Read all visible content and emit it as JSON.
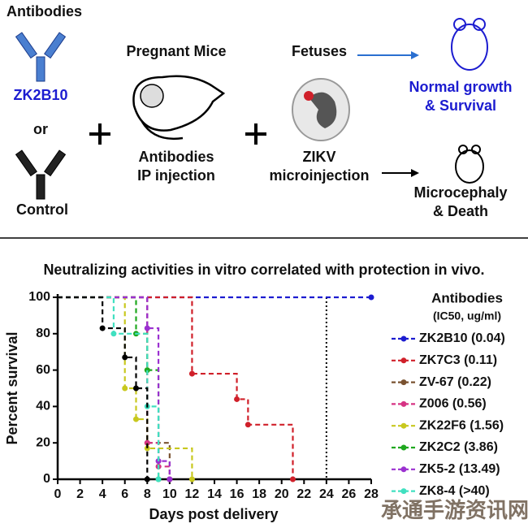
{
  "diagram": {
    "antibodies_heading": "Antibodies",
    "test_antibody": "ZK2B10",
    "or": "or",
    "control": "Control",
    "mice_heading": "Pregnant Mice",
    "mice_caption": [
      "Antibodies",
      "IP injection"
    ],
    "fetuses_heading": "Fetuses",
    "fetuses_caption": [
      "ZIKV",
      "microinjection"
    ],
    "outcome_good": [
      "Normal growth",
      "& Survival"
    ],
    "outcome_bad": [
      "Microcephaly",
      "& Death"
    ]
  },
  "chart_data": {
    "type": "step",
    "title": "Neutralizing activities in vitro correlated with protection in vivo.",
    "x_label": "Days post delivery",
    "y_label": "Percent survival",
    "legend_title": [
      "Antibodies",
      "(IC50, ug/ml)"
    ],
    "xlim": [
      0,
      28
    ],
    "ylim": [
      0,
      100
    ],
    "xticks": [
      0,
      2,
      4,
      6,
      8,
      10,
      12,
      14,
      16,
      18,
      20,
      22,
      24,
      26,
      28
    ],
    "yticks": [
      0,
      20,
      40,
      60,
      80,
      100
    ],
    "vline": 24,
    "series": [
      {
        "name": "ZK2B10 (0.04)",
        "color": "#1c1cd0",
        "x": [
          0,
          28
        ],
        "values": [
          100,
          100
        ]
      },
      {
        "name": "ZK7C3 (0.11)",
        "color": "#d0202a",
        "x": [
          0,
          12,
          16,
          17,
          21
        ],
        "values": [
          100,
          58,
          44,
          30,
          0
        ]
      },
      {
        "name": "ZV-67 (0.22)",
        "color": "#7a5230",
        "x": [
          0,
          8,
          10
        ],
        "values": [
          100,
          20,
          0
        ]
      },
      {
        "name": "Z006 (0.56)",
        "color": "#d63384",
        "x": [
          0,
          8,
          9,
          10
        ],
        "values": [
          100,
          20,
          7,
          0
        ]
      },
      {
        "name": "ZK22F6 (1.56)",
        "color": "#c8c81e",
        "x": [
          0,
          6,
          7,
          8,
          12
        ],
        "values": [
          100,
          50,
          33,
          17,
          0
        ]
      },
      {
        "name": "ZK2C2 (3.86)",
        "color": "#1fa81f",
        "x": [
          0,
          7,
          8,
          9
        ],
        "values": [
          100,
          80,
          60,
          0
        ]
      },
      {
        "name": "ZK5-2 (13.49)",
        "color": "#9b30d0",
        "x": [
          0,
          8,
          9,
          10
        ],
        "values": [
          100,
          83,
          10,
          0
        ]
      },
      {
        "name": "ZK8-4 (>40)",
        "color": "#40e0c0",
        "x": [
          0,
          5,
          8,
          9
        ],
        "values": [
          100,
          80,
          40,
          0
        ]
      },
      {
        "color": "#000000",
        "x": [
          0,
          4,
          6,
          7,
          8
        ],
        "values": [
          100,
          83,
          67,
          50,
          0
        ]
      }
    ]
  },
  "watermark": "承通手游资讯网"
}
